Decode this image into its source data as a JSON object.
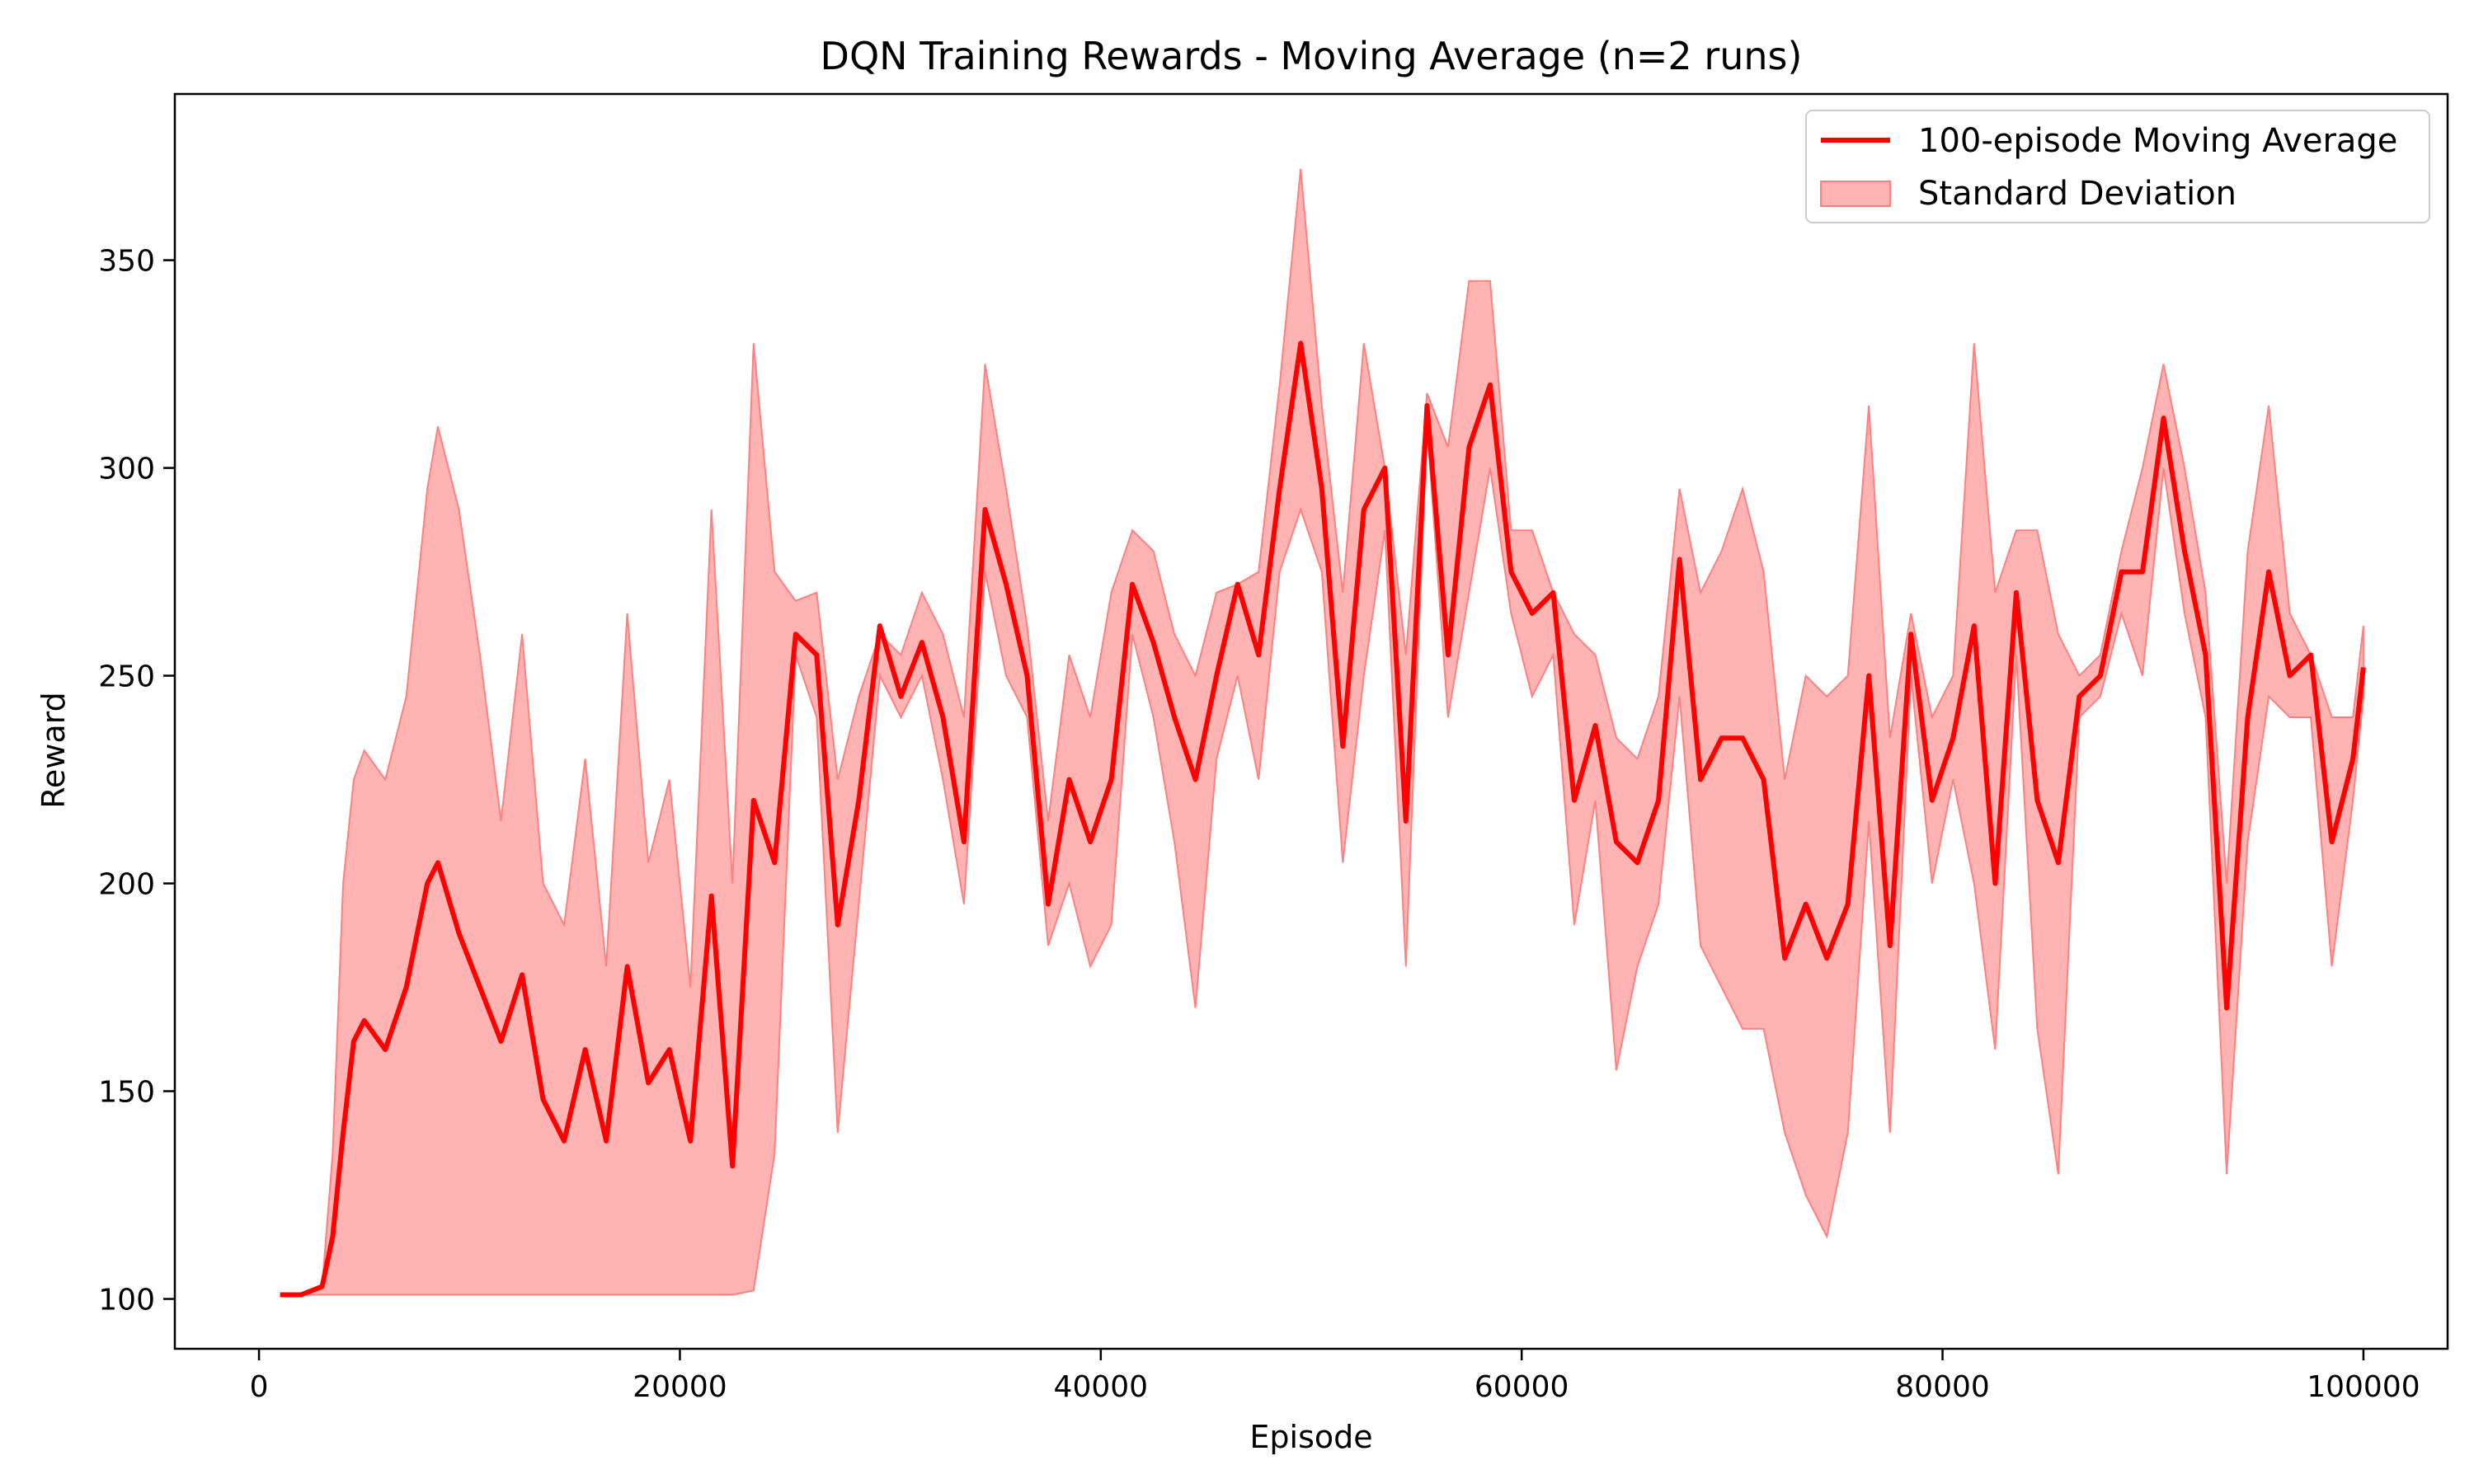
{
  "chart_data": {
    "type": "line",
    "title": "DQN Training Rewards - Moving Average (n=2 runs)",
    "xlabel": "Episode",
    "ylabel": "Reward",
    "xlim": [
      -4000,
      104000
    ],
    "ylim": [
      88,
      390
    ],
    "xticks": [
      0,
      20000,
      40000,
      60000,
      80000,
      100000
    ],
    "yticks": [
      100,
      150,
      200,
      250,
      300,
      350
    ],
    "grid": false,
    "legend_position": "top-right",
    "colors": {
      "mean": "#ff0000",
      "band_fill": "#ffb3b3",
      "band_edge": "#ff8080"
    },
    "series": [
      {
        "name": "100-episode Moving Average",
        "kind": "line"
      },
      {
        "name": "Standard Deviation",
        "kind": "band"
      }
    ],
    "x": [
      1000,
      2000,
      3000,
      3500,
      4000,
      4500,
      5000,
      6000,
      7000,
      8000,
      8500,
      9500,
      10500,
      11500,
      12500,
      13500,
      14500,
      15500,
      16500,
      17500,
      18500,
      19500,
      20500,
      21500,
      22500,
      23500,
      24500,
      25500,
      26500,
      27500,
      28500,
      29500,
      30500,
      31500,
      32500,
      33500,
      34500,
      35500,
      36500,
      37500,
      38500,
      39500,
      40500,
      41500,
      42500,
      43500,
      44500,
      45500,
      46500,
      47500,
      48500,
      49500,
      50500,
      51500,
      52500,
      53500,
      54500,
      55500,
      56500,
      57500,
      58500,
      59500,
      60500,
      61500,
      62500,
      63500,
      64500,
      65500,
      66500,
      67500,
      68500,
      69500,
      70500,
      71500,
      72500,
      73500,
      74500,
      75500,
      76500,
      77500,
      78500,
      79500,
      80500,
      81500,
      82500,
      83500,
      84500,
      85500,
      86500,
      87500,
      88500,
      89500,
      90500,
      91500,
      92500,
      93500,
      94500,
      95500,
      96500,
      97500,
      98500,
      99500,
      100000
    ],
    "mean": [
      101,
      101,
      103,
      115,
      140,
      162,
      167,
      160,
      175,
      200,
      205,
      188,
      175,
      162,
      178,
      148,
      138,
      160,
      138,
      180,
      152,
      160,
      138,
      197,
      132,
      220,
      205,
      260,
      255,
      190,
      220,
      262,
      245,
      258,
      240,
      210,
      290,
      272,
      250,
      195,
      225,
      210,
      225,
      272,
      258,
      240,
      225,
      250,
      272,
      255,
      295,
      330,
      295,
      233,
      290,
      300,
      215,
      315,
      255,
      305,
      320,
      275,
      265,
      270,
      220,
      238,
      210,
      205,
      220,
      278,
      225,
      235,
      235,
      225,
      182,
      195,
      182,
      195,
      250,
      185,
      260,
      220,
      235,
      262,
      200,
      270,
      220,
      205,
      245,
      250,
      275,
      275,
      312,
      280,
      255,
      170,
      240,
      275,
      250,
      255,
      210,
      230,
      252
    ],
    "upper": [
      101,
      101,
      103,
      135,
      200,
      225,
      232,
      225,
      245,
      295,
      310,
      290,
      255,
      215,
      260,
      200,
      190,
      230,
      180,
      265,
      205,
      225,
      175,
      290,
      200,
      330,
      275,
      268,
      270,
      225,
      245,
      260,
      255,
      270,
      260,
      240,
      325,
      295,
      262,
      215,
      255,
      240,
      270,
      285,
      280,
      260,
      250,
      270,
      272,
      275,
      320,
      372,
      315,
      270,
      330,
      300,
      255,
      318,
      305,
      345,
      345,
      285,
      285,
      270,
      260,
      255,
      235,
      230,
      245,
      295,
      270,
      280,
      295,
      275,
      225,
      250,
      245,
      250,
      315,
      235,
      265,
      240,
      250,
      330,
      270,
      285,
      285,
      260,
      250,
      255,
      280,
      300,
      325,
      300,
      270,
      200,
      280,
      315,
      265,
      255,
      240,
      240,
      262
    ],
    "lower": [
      101,
      101,
      101,
      101,
      101,
      101,
      101,
      101,
      101,
      101,
      101,
      101,
      101,
      101,
      101,
      101,
      101,
      101,
      101,
      101,
      101,
      101,
      101,
      101,
      101,
      102,
      135,
      255,
      240,
      140,
      195,
      250,
      240,
      250,
      225,
      195,
      275,
      250,
      240,
      185,
      200,
      180,
      190,
      260,
      240,
      210,
      170,
      230,
      250,
      225,
      275,
      290,
      275,
      205,
      250,
      285,
      180,
      310,
      240,
      270,
      300,
      265,
      245,
      255,
      190,
      220,
      155,
      180,
      195,
      245,
      185,
      175,
      165,
      165,
      140,
      125,
      115,
      140,
      215,
      140,
      250,
      200,
      225,
      200,
      160,
      255,
      165,
      130,
      240,
      245,
      265,
      250,
      300,
      265,
      240,
      130,
      210,
      245,
      240,
      240,
      180,
      220,
      245
    ]
  }
}
